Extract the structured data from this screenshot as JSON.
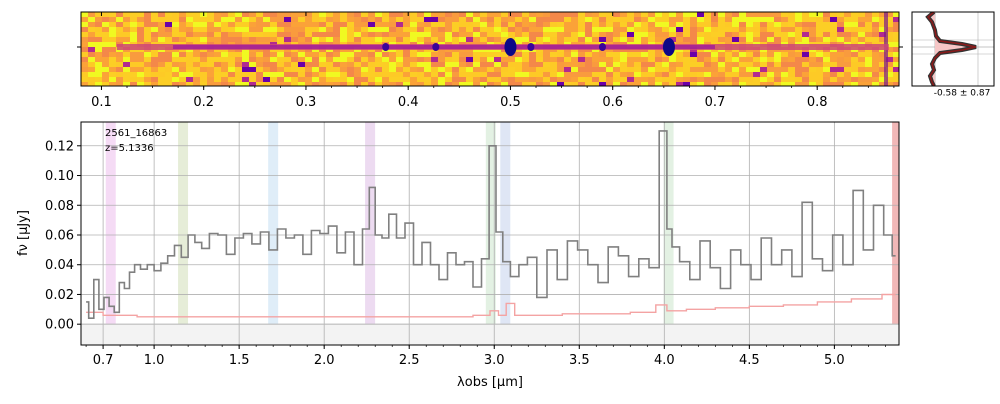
{
  "figure": {
    "object_id": "2561_16863",
    "redshift_label": "z=5.1336",
    "colors": {
      "spectrum": "#808080",
      "error": "#f4a3a3",
      "profile_line": "#8b1a1a",
      "profile_fill": "#f6c6c6",
      "zero_band": "#e8e8e8",
      "grid": "#b0b0b0"
    }
  },
  "chart_data": [
    {
      "type": "heatmap",
      "description_role": "2D spectrum",
      "colormap": "plasma-like (yellow/orange background, purple trace)",
      "x_tick_labels": [
        "0.1",
        "0.2",
        "0.3",
        "0.4",
        "0.5",
        "0.6",
        "0.7",
        "0.8"
      ],
      "x_ticks": [
        0.1,
        0.2,
        0.3,
        0.4,
        0.5,
        0.6,
        0.7,
        0.8
      ],
      "xlim": [
        0.08,
        0.88
      ],
      "emission_blobs_x": [
        0.378,
        0.427,
        0.5,
        0.52,
        0.59,
        0.655
      ]
    },
    {
      "type": "line",
      "description_role": "cross-dispersion profile",
      "annotation": "-0.58 ± 0.87"
    },
    {
      "type": "line",
      "description_role": "1D spectrum",
      "xlabel": "λobs [μm]",
      "ylabel": "fν [μJy]",
      "xlim": [
        0.57,
        5.38
      ],
      "ylim": [
        -0.014,
        0.136
      ],
      "x_tick_labels": [
        "0.7",
        "1.0",
        "1.5",
        "2.0",
        "2.5",
        "3.0",
        "3.5",
        "4.0",
        "4.5",
        "5.0"
      ],
      "y_tick_labels": [
        "0.00",
        "0.02",
        "0.04",
        "0.06",
        "0.08",
        "0.10",
        "0.12"
      ],
      "grid": true,
      "series": [
        {
          "role": "flux",
          "x": [
            0.6,
            0.63,
            0.66,
            0.69,
            0.72,
            0.75,
            0.78,
            0.81,
            0.84,
            0.87,
            0.9,
            0.94,
            0.98,
            1.02,
            1.06,
            1.1,
            1.14,
            1.18,
            1.22,
            1.26,
            1.3,
            1.35,
            1.4,
            1.45,
            1.5,
            1.55,
            1.6,
            1.65,
            1.7,
            1.75,
            1.8,
            1.85,
            1.9,
            1.95,
            2.0,
            2.05,
            2.1,
            2.15,
            2.2,
            2.25,
            2.28,
            2.32,
            2.36,
            2.4,
            2.45,
            2.5,
            2.55,
            2.6,
            2.65,
            2.7,
            2.75,
            2.8,
            2.85,
            2.9,
            2.95,
            2.99,
            3.03,
            3.07,
            3.12,
            3.17,
            3.22,
            3.28,
            3.34,
            3.4,
            3.46,
            3.52,
            3.58,
            3.64,
            3.7,
            3.76,
            3.82,
            3.88,
            3.94,
            4.0,
            4.03,
            4.06,
            4.12,
            4.18,
            4.24,
            4.3,
            4.36,
            4.42,
            4.48,
            4.54,
            4.6,
            4.66,
            4.72,
            4.78,
            4.84,
            4.9,
            4.96,
            5.02,
            5.08,
            5.14,
            5.2,
            5.26,
            5.32,
            5.36
          ],
          "y": [
            0.015,
            0.004,
            0.03,
            0.01,
            0.018,
            0.012,
            0.008,
            0.028,
            0.024,
            0.035,
            0.04,
            0.037,
            0.04,
            0.036,
            0.041,
            0.046,
            0.053,
            0.045,
            0.06,
            0.055,
            0.051,
            0.061,
            0.06,
            0.047,
            0.058,
            0.061,
            0.054,
            0.062,
            0.05,
            0.064,
            0.058,
            0.06,
            0.047,
            0.063,
            0.061,
            0.066,
            0.048,
            0.062,
            0.04,
            0.064,
            0.092,
            0.06,
            0.058,
            0.074,
            0.058,
            0.068,
            0.04,
            0.055,
            0.04,
            0.03,
            0.048,
            0.04,
            0.042,
            0.025,
            0.044,
            0.12,
            0.062,
            0.042,
            0.032,
            0.04,
            0.045,
            0.018,
            0.05,
            0.03,
            0.056,
            0.05,
            0.04,
            0.028,
            0.052,
            0.046,
            0.032,
            0.044,
            0.038,
            0.13,
            0.064,
            0.052,
            0.042,
            0.03,
            0.056,
            0.038,
            0.024,
            0.05,
            0.04,
            0.03,
            0.058,
            0.04,
            0.05,
            0.032,
            0.082,
            0.044,
            0.036,
            0.06,
            0.04,
            0.09,
            0.05,
            0.08,
            0.06,
            0.046
          ]
        },
        {
          "role": "error",
          "x": [
            0.6,
            0.8,
            1.0,
            1.2,
            1.4,
            1.6,
            1.8,
            2.0,
            2.2,
            2.4,
            2.6,
            2.8,
            2.95,
            3.0,
            3.05,
            3.09,
            3.15,
            3.3,
            3.5,
            3.7,
            3.9,
            4.0,
            4.03,
            4.06,
            4.2,
            4.4,
            4.6,
            4.8,
            5.0,
            5.2,
            5.36
          ],
          "y": [
            0.008,
            0.006,
            0.005,
            0.005,
            0.005,
            0.005,
            0.005,
            0.005,
            0.005,
            0.005,
            0.005,
            0.005,
            0.006,
            0.009,
            0.006,
            0.014,
            0.006,
            0.006,
            0.007,
            0.007,
            0.008,
            0.013,
            0.009,
            0.009,
            0.01,
            0.011,
            0.012,
            0.013,
            0.015,
            0.017,
            0.02
          ]
        }
      ],
      "line_bands": [
        {
          "center": 0.745,
          "color": "#e8b0e8"
        },
        {
          "center": 1.17,
          "color": "#c8d8a8"
        },
        {
          "center": 1.7,
          "color": "#b8d8f0"
        },
        {
          "center": 2.27,
          "color": "#d8b0e0"
        },
        {
          "center": 2.98,
          "color": "#c0e0c0"
        },
        {
          "center": 3.065,
          "color": "#b8c8e8"
        },
        {
          "center": 4.025,
          "color": "#c0e0c0"
        },
        {
          "center": 5.36,
          "color": "#e06060"
        }
      ]
    }
  ]
}
